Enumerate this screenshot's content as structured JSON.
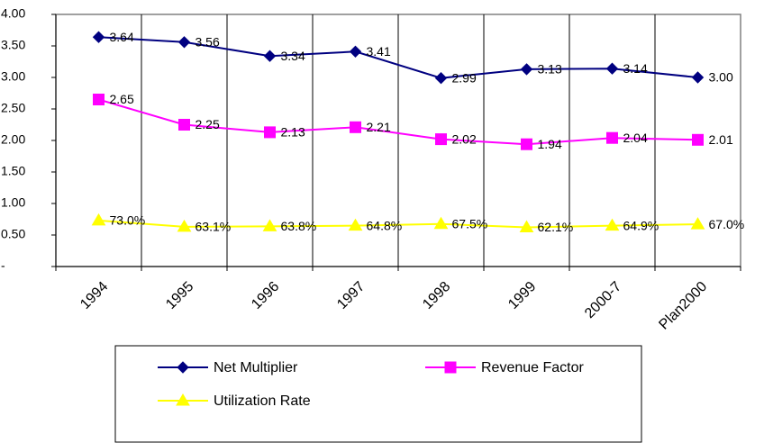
{
  "chart_data": {
    "type": "line",
    "categories": [
      "1994",
      "1995",
      "1996",
      "1997",
      "1998",
      "1999",
      "2000-7",
      "Plan2000"
    ],
    "series": [
      {
        "name": "Net Multiplier",
        "color": "#000080",
        "marker": "diamond",
        "values": [
          3.64,
          3.56,
          3.34,
          3.41,
          2.99,
          3.13,
          3.14,
          3.0
        ],
        "value_labels": [
          "3.64",
          "3.56",
          "3.34",
          "3.41",
          "2.99",
          "3.13",
          "3.14",
          "3.00"
        ]
      },
      {
        "name": "Revenue Factor",
        "color": "#ff00ff",
        "marker": "square",
        "values": [
          2.65,
          2.25,
          2.13,
          2.21,
          2.02,
          1.94,
          2.04,
          2.01
        ],
        "value_labels": [
          "2.65",
          "2.25",
          "2.13",
          "2.21",
          "2.02",
          "1.94",
          "2.04",
          "2.01"
        ]
      },
      {
        "name": "Utilization Rate",
        "color": "#ffff00",
        "marker": "triangle",
        "values": [
          0.73,
          0.631,
          0.638,
          0.648,
          0.675,
          0.621,
          0.649,
          0.67
        ],
        "value_labels": [
          "73.0%",
          "63.1%",
          "63.8%",
          "64.8%",
          "67.5%",
          "62.1%",
          "64.9%",
          "67.0%"
        ]
      }
    ],
    "ylim": [
      0,
      4
    ],
    "yticks": [
      {
        "value": 0,
        "label": "-"
      },
      {
        "value": 0.5,
        "label": "0.50"
      },
      {
        "value": 1,
        "label": "1.00"
      },
      {
        "value": 1.5,
        "label": "1.50"
      },
      {
        "value": 2,
        "label": "2.00"
      },
      {
        "value": 2.5,
        "label": "2.50"
      },
      {
        "value": 3,
        "label": "3.00"
      },
      {
        "value": 3.5,
        "label": "3.50"
      },
      {
        "value": 4,
        "label": "4.00"
      }
    ],
    "grid": "x",
    "legend": "bottom"
  }
}
